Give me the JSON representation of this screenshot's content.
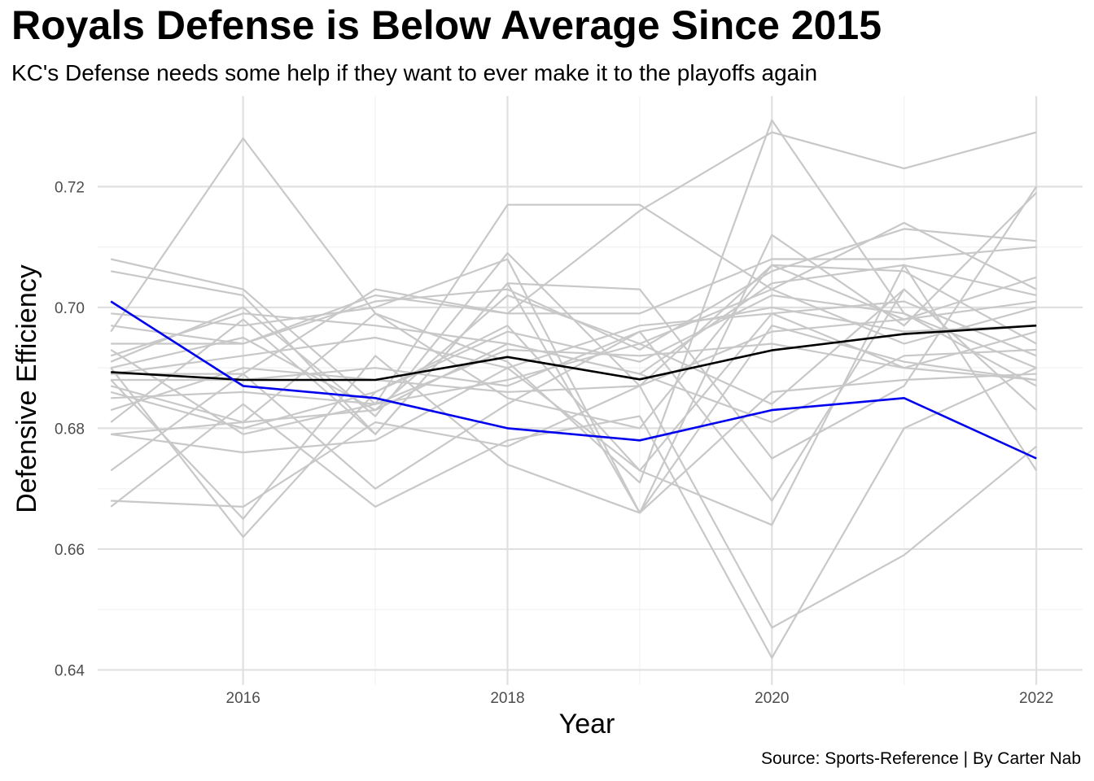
{
  "title": "Royals Defense is Below Average Since 2015",
  "subtitle": "KC's Defense needs some help if they want to ever make it to the playoffs again",
  "caption": "Source: Sports-Reference | By Carter Nab",
  "chart_data": {
    "type": "line",
    "title": "Royals Defense is Below Average Since 2015",
    "subtitle": "KC's Defense needs some help if they want to ever make it to the playoffs again",
    "xlabel": "Year",
    "ylabel": "Defensive Efficiency",
    "x": [
      2015,
      2016,
      2017,
      2018,
      2019,
      2020,
      2021,
      2022
    ],
    "xticks": [
      2016,
      2018,
      2020,
      2022
    ],
    "xlim": [
      2014.9,
      2022.35
    ],
    "ylim": [
      0.6375,
      0.735
    ],
    "yticks": [
      0.64,
      0.66,
      0.68,
      0.7,
      0.72
    ],
    "ytick_labels": [
      "0.64",
      "0.66",
      "0.68",
      "0.70",
      "0.72"
    ],
    "grid": true,
    "highlight_series": [
      {
        "role": "league-average",
        "color": "#000000",
        "values": [
          0.6893,
          0.688,
          0.688,
          0.6918,
          0.6881,
          0.6929,
          0.6956,
          0.697
        ]
      },
      {
        "role": "kansas-city",
        "color": "#0000ee",
        "values": [
          0.701,
          0.687,
          0.685,
          0.68,
          0.678,
          0.683,
          0.685,
          0.675
        ]
      }
    ],
    "background_series_color": "#c8c8c8",
    "background_series": [
      [
        0.696,
        0.728,
        0.699,
        0.691,
        0.671,
        0.731,
        0.699,
        0.687
      ],
      [
        0.689,
        0.689,
        0.703,
        0.699,
        0.716,
        0.729,
        0.723,
        0.729
      ],
      [
        0.708,
        0.703,
        0.684,
        0.717,
        0.717,
        0.703,
        0.714,
        0.703
      ],
      [
        0.706,
        0.702,
        0.679,
        0.704,
        0.703,
        0.675,
        0.687,
        0.72
      ],
      [
        0.699,
        0.697,
        0.7,
        0.708,
        0.666,
        0.712,
        0.697,
        0.719
      ],
      [
        0.697,
        0.694,
        0.701,
        0.703,
        0.693,
        0.706,
        0.713,
        0.711
      ],
      [
        0.694,
        0.694,
        0.702,
        0.699,
        0.699,
        0.708,
        0.708,
        0.71
      ],
      [
        0.692,
        0.699,
        0.697,
        0.694,
        0.689,
        0.704,
        0.707,
        0.702
      ],
      [
        0.691,
        0.7,
        0.682,
        0.709,
        0.687,
        0.707,
        0.698,
        0.705
      ],
      [
        0.69,
        0.695,
        0.683,
        0.702,
        0.694,
        0.703,
        0.694,
        0.7
      ],
      [
        0.689,
        0.692,
        0.695,
        0.69,
        0.697,
        0.699,
        0.701,
        0.692
      ],
      [
        0.688,
        0.688,
        0.69,
        0.687,
        0.696,
        0.7,
        0.696,
        0.697
      ],
      [
        0.687,
        0.681,
        0.699,
        0.685,
        0.68,
        0.707,
        0.706,
        0.694
      ],
      [
        0.686,
        0.68,
        0.686,
        0.696,
        0.691,
        0.702,
        0.699,
        0.69
      ],
      [
        0.685,
        0.686,
        0.684,
        0.693,
        0.692,
        0.694,
        0.69,
        0.688
      ],
      [
        0.683,
        0.69,
        0.688,
        0.686,
        0.687,
        0.696,
        0.698,
        0.701
      ],
      [
        0.681,
        0.698,
        0.679,
        0.704,
        0.666,
        0.686,
        0.688,
        0.689
      ],
      [
        0.679,
        0.681,
        0.683,
        0.694,
        0.689,
        0.681,
        0.692,
        0.693
      ],
      [
        0.679,
        0.676,
        0.678,
        0.69,
        0.673,
        0.664,
        0.707,
        0.673
      ],
      [
        0.673,
        0.689,
        0.67,
        0.684,
        0.696,
        0.668,
        0.703,
        0.683
      ],
      [
        0.668,
        0.667,
        0.681,
        0.677,
        0.687,
        0.647,
        0.659,
        0.677
      ],
      [
        0.667,
        0.684,
        0.667,
        0.678,
        0.682,
        0.642,
        0.68,
        0.69
      ],
      [
        0.688,
        0.665,
        0.692,
        0.674,
        0.666,
        0.697,
        0.691,
        0.688
      ],
      [
        0.69,
        0.662,
        0.686,
        0.697,
        0.673,
        0.699,
        0.69,
        0.696
      ],
      [
        0.693,
        0.679,
        0.684,
        0.688,
        0.694,
        0.684,
        0.703,
        null
      ]
    ]
  }
}
